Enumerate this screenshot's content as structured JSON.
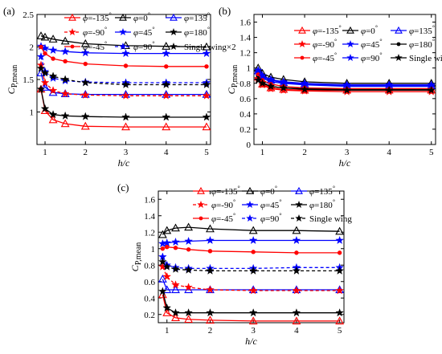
{
  "chart_data": [
    {
      "type": "line",
      "panel_label": "(a)",
      "ylabel": {
        "main": "C",
        "sub": "P,mean"
      },
      "xlabel": "h/c",
      "xlim": [
        0.8,
        5.1
      ],
      "ylim": [
        0.5,
        2.5
      ],
      "xticks": [
        1,
        2,
        3,
        4,
        5
      ],
      "yticks": [
        {
          "v": 1,
          "t": "1"
        },
        {
          "v": 1.5,
          "t": "1.5"
        },
        {
          "v": 2,
          "t": "2"
        },
        {
          "v": 2.5,
          "t": "2.5"
        }
      ],
      "x": [
        0.9,
        1.0,
        1.2,
        1.5,
        2,
        3,
        4,
        5
      ],
      "legend": {
        "ncol": 3
      },
      "series": [
        {
          "phi": "-135",
          "name": "=-135",
          "color": "#ff0000",
          "marker": "triangle",
          "dash": false,
          "values": [
            1.35,
            1.02,
            0.88,
            0.82,
            0.78,
            0.77,
            0.77,
            0.77
          ]
        },
        {
          "phi": "0",
          "name": "=0",
          "color": "#000000",
          "marker": "triangle",
          "dash": false,
          "values": [
            2.17,
            2.15,
            2.12,
            2.09,
            2.05,
            2.02,
            2.01,
            2.0
          ]
        },
        {
          "phi": "135",
          "name": "=135",
          "color": "#0000ff",
          "marker": "triangle",
          "dash": false,
          "values": [
            1.6,
            1.38,
            1.3,
            1.28,
            1.27,
            1.27,
            1.27,
            1.27
          ]
        },
        {
          "phi": "-90",
          "name": "=-90",
          "color": "#ff0000",
          "marker": "star",
          "dash": true,
          "values": [
            1.72,
            1.45,
            1.33,
            1.28,
            1.26,
            1.25,
            1.25,
            1.25
          ]
        },
        {
          "phi": "45",
          "name": "=45",
          "color": "#0000ff",
          "marker": "star",
          "dash": false,
          "values": [
            2.01,
            1.98,
            1.95,
            1.93,
            1.91,
            1.9,
            1.9,
            1.9
          ]
        },
        {
          "phi": "180",
          "name": "=180",
          "color": "#000000",
          "marker": "star",
          "dash": false,
          "values": [
            1.35,
            1.05,
            0.96,
            0.94,
            0.93,
            0.92,
            0.92,
            0.92
          ]
        },
        {
          "phi": "-45",
          "name": "=-45",
          "color": "#ff0000",
          "marker": "dot",
          "dash": false,
          "values": [
            2.0,
            1.9,
            1.82,
            1.78,
            1.74,
            1.71,
            1.7,
            1.7
          ]
        },
        {
          "phi": "90",
          "name": "=90",
          "color": "#0000ff",
          "marker": "star",
          "dash": true,
          "values": [
            1.85,
            1.62,
            1.52,
            1.48,
            1.46,
            1.45,
            1.45,
            1.45
          ]
        },
        {
          "phi": "",
          "name": "Single wing×2",
          "color": "#000000",
          "marker": "star",
          "dash": true,
          "values": [
            1.67,
            1.6,
            1.55,
            1.5,
            1.45,
            1.42,
            1.42,
            1.42
          ]
        }
      ]
    },
    {
      "type": "line",
      "panel_label": "(b)",
      "ylabel": {
        "main": "C",
        "sub": "P,mean"
      },
      "xlabel": "h/c",
      "xlim": [
        0.8,
        5.1
      ],
      "ylim": [
        0.0,
        1.7
      ],
      "xticks": [
        1,
        2,
        3,
        4,
        5
      ],
      "yticks": [
        {
          "v": 0,
          "t": "0"
        },
        {
          "v": 0.2,
          "t": "0.2"
        },
        {
          "v": 0.4,
          "t": "0.4"
        },
        {
          "v": 0.6,
          "t": "0.6"
        },
        {
          "v": 0.8,
          "t": "0.8"
        },
        {
          "v": 1.0,
          "t": "1"
        },
        {
          "v": 1.2,
          "t": "1.2"
        },
        {
          "v": 1.4,
          "t": "1.4"
        },
        {
          "v": 1.6,
          "t": "1.6"
        }
      ],
      "x": [
        0.9,
        1.0,
        1.2,
        1.5,
        2,
        3,
        4,
        5
      ],
      "legend": {
        "ncol": 3
      },
      "series": [
        {
          "phi": "-135",
          "name": "=-135",
          "color": "#ff0000",
          "marker": "triangle",
          "dash": false,
          "values": [
            0.88,
            0.79,
            0.74,
            0.72,
            0.71,
            0.71,
            0.71,
            0.71
          ]
        },
        {
          "phi": "0",
          "name": "=0",
          "color": "#000000",
          "marker": "triangle",
          "dash": false,
          "values": [
            1.0,
            0.93,
            0.88,
            0.85,
            0.82,
            0.8,
            0.8,
            0.8
          ]
        },
        {
          "phi": "135",
          "name": "=135",
          "color": "#0000ff",
          "marker": "triangle",
          "dash": false,
          "values": [
            0.96,
            0.89,
            0.84,
            0.81,
            0.79,
            0.77,
            0.77,
            0.77
          ]
        },
        {
          "phi": "-90",
          "name": "=-90",
          "color": "#ff0000",
          "marker": "star",
          "dash": false,
          "values": [
            0.86,
            0.78,
            0.73,
            0.71,
            0.7,
            0.69,
            0.69,
            0.69
          ]
        },
        {
          "phi": "45",
          "name": "=45",
          "color": "#0000ff",
          "marker": "star",
          "dash": false,
          "values": [
            0.94,
            0.87,
            0.82,
            0.8,
            0.78,
            0.76,
            0.76,
            0.76
          ]
        },
        {
          "phi": "180",
          "name": "=180",
          "color": "#000000",
          "marker": "dot",
          "dash": false,
          "values": [
            0.9,
            0.81,
            0.76,
            0.74,
            0.73,
            0.72,
            0.72,
            0.72
          ]
        },
        {
          "phi": "-45",
          "name": "=-45",
          "color": "#ff0000",
          "marker": "dot",
          "dash": false,
          "values": [
            0.92,
            0.84,
            0.79,
            0.76,
            0.74,
            0.73,
            0.73,
            0.73
          ]
        },
        {
          "phi": "90",
          "name": "=90",
          "color": "#0000ff",
          "marker": "star",
          "dash": false,
          "values": [
            0.97,
            0.9,
            0.85,
            0.82,
            0.8,
            0.78,
            0.78,
            0.78
          ]
        },
        {
          "phi": "",
          "name": "Single wing",
          "color": "#000000",
          "marker": "star",
          "dash": false,
          "values": [
            0.84,
            0.8,
            0.76,
            0.74,
            0.72,
            0.71,
            0.71,
            0.71
          ]
        }
      ]
    },
    {
      "type": "line",
      "panel_label": "(c)",
      "ylabel": {
        "main": "C",
        "sub": "P,mean"
      },
      "xlabel": "h/c",
      "xlim": [
        0.8,
        5.1
      ],
      "ylim": [
        0.1,
        1.7
      ],
      "xticks": [
        1,
        2,
        3,
        4,
        5
      ],
      "yticks": [
        {
          "v": 0.2,
          "t": "0.2"
        },
        {
          "v": 0.4,
          "t": "0.4"
        },
        {
          "v": 0.6,
          "t": "0.6"
        },
        {
          "v": 0.8,
          "t": "0.8"
        },
        {
          "v": 1.0,
          "t": "1"
        },
        {
          "v": 1.2,
          "t": "1.2"
        },
        {
          "v": 1.4,
          "t": "1.4"
        },
        {
          "v": 1.6,
          "t": "1.6"
        }
      ],
      "x": [
        0.9,
        1.0,
        1.2,
        1.5,
        2,
        3,
        4,
        5
      ],
      "legend": {
        "ncol": 3
      },
      "series": [
        {
          "phi": "-135",
          "name": "=-135",
          "color": "#ff0000",
          "marker": "triangle",
          "dash": false,
          "values": [
            0.44,
            0.22,
            0.16,
            0.14,
            0.13,
            0.12,
            0.12,
            0.12
          ]
        },
        {
          "phi": "0",
          "name": "=0",
          "color": "#000000",
          "marker": "triangle",
          "dash": false,
          "values": [
            1.17,
            1.22,
            1.25,
            1.26,
            1.24,
            1.22,
            1.22,
            1.21
          ]
        },
        {
          "phi": "135",
          "name": "=135",
          "color": "#0000ff",
          "marker": "triangle",
          "dash": false,
          "values": [
            0.63,
            0.5,
            0.5,
            0.5,
            0.5,
            0.5,
            0.5,
            0.5
          ]
        },
        {
          "phi": "-90",
          "name": "=-90",
          "color": "#ff0000",
          "marker": "star",
          "dash": true,
          "values": [
            0.78,
            0.66,
            0.56,
            0.53,
            0.5,
            0.49,
            0.49,
            0.49
          ]
        },
        {
          "phi": "45",
          "name": "=45",
          "color": "#0000ff",
          "marker": "star",
          "dash": false,
          "values": [
            1.06,
            1.07,
            1.08,
            1.09,
            1.1,
            1.1,
            1.1,
            1.1
          ]
        },
        {
          "phi": "180",
          "name": "=180",
          "color": "#000000",
          "marker": "star",
          "dash": false,
          "values": [
            0.48,
            0.28,
            0.22,
            0.22,
            0.22,
            0.22,
            0.22,
            0.22
          ]
        },
        {
          "phi": "-45",
          "name": "=-45",
          "color": "#ff0000",
          "marker": "dot",
          "dash": false,
          "values": [
            1.0,
            1.02,
            1.01,
            0.99,
            0.97,
            0.96,
            0.95,
            0.95
          ]
        },
        {
          "phi": "90",
          "name": "=90",
          "color": "#0000ff",
          "marker": "star",
          "dash": true,
          "values": [
            0.9,
            0.8,
            0.77,
            0.76,
            0.76,
            0.76,
            0.77,
            0.77
          ]
        },
        {
          "phi": "",
          "name": "Single wing",
          "color": "#000000",
          "marker": "star",
          "dash": true,
          "values": [
            0.84,
            0.78,
            0.75,
            0.74,
            0.73,
            0.73,
            0.73,
            0.73
          ]
        }
      ]
    }
  ]
}
